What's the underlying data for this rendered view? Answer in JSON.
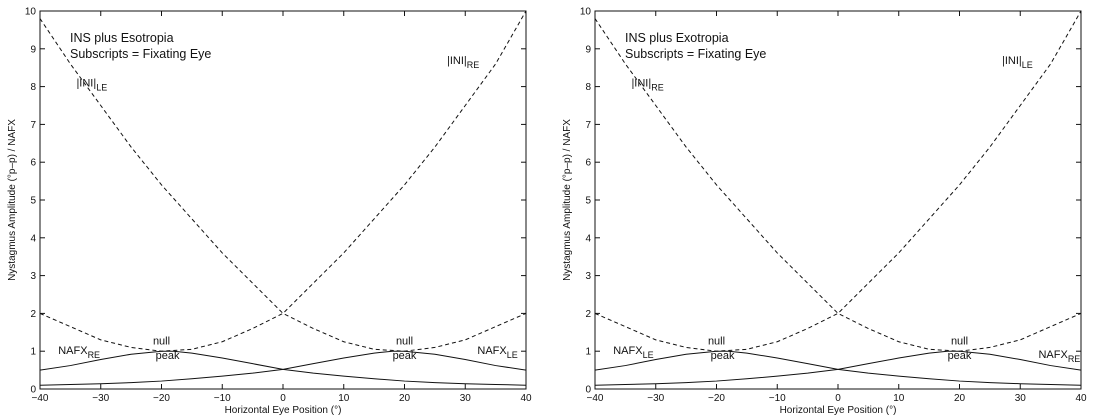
{
  "chart_data": [
    {
      "type": "line",
      "title": "INS plus Esotropia",
      "subtitle": "Subscripts = Fixating Eye",
      "xlabel": "Horizontal Eye Position (°)",
      "ylabel": "Nystagmus Amplitude (°p–p) / NAFX",
      "xlim": [
        -40,
        40
      ],
      "ylim": [
        0,
        10
      ],
      "xticks": [
        -40,
        -30,
        -20,
        -10,
        0,
        10,
        20,
        30,
        40
      ],
      "yticks": [
        0,
        1,
        2,
        3,
        4,
        5,
        6,
        7,
        8,
        9,
        10
      ],
      "grid": false,
      "series": [
        {
          "label_main": "|INI|",
          "label_sub": "LE",
          "style": "dashed",
          "x": [
            -40,
            -35,
            -30,
            -25,
            -20,
            -15,
            -10,
            -5,
            0,
            5,
            10,
            15,
            20,
            25,
            30,
            35,
            40
          ],
          "y": [
            9.8,
            8.6,
            7.5,
            6.4,
            5.4,
            4.5,
            3.6,
            2.8,
            2.0,
            1.6,
            1.25,
            1.05,
            1.0,
            1.1,
            1.3,
            1.65,
            2.0
          ]
        },
        {
          "label_main": "|INI|",
          "label_sub": "RE",
          "style": "dashed",
          "x": [
            -40,
            -35,
            -30,
            -25,
            -20,
            -15,
            -10,
            -5,
            0,
            5,
            10,
            15,
            20,
            25,
            30,
            35,
            40
          ],
          "y": [
            2.0,
            1.65,
            1.3,
            1.1,
            1.0,
            1.05,
            1.25,
            1.6,
            2.0,
            2.8,
            3.6,
            4.5,
            5.4,
            6.4,
            7.5,
            8.6,
            10.0
          ]
        },
        {
          "label_main": "NAFX",
          "label_sub": "RE",
          "style": "solid",
          "x": [
            -40,
            -35,
            -30,
            -25,
            -20,
            -18,
            -15,
            -10,
            -5,
            0,
            5,
            10,
            15,
            20,
            25,
            30,
            35,
            40
          ],
          "y": [
            0.5,
            0.62,
            0.78,
            0.92,
            1.0,
            1.0,
            0.95,
            0.82,
            0.67,
            0.52,
            0.42,
            0.34,
            0.27,
            0.21,
            0.17,
            0.14,
            0.12,
            0.1
          ]
        },
        {
          "label_main": "NAFX",
          "label_sub": "LE",
          "style": "solid",
          "x": [
            -40,
            -35,
            -30,
            -25,
            -20,
            -15,
            -10,
            -5,
            0,
            5,
            10,
            15,
            18,
            20,
            25,
            30,
            35,
            40
          ],
          "y": [
            0.1,
            0.12,
            0.14,
            0.17,
            0.21,
            0.27,
            0.34,
            0.42,
            0.52,
            0.67,
            0.82,
            0.95,
            1.0,
            1.0,
            0.92,
            0.78,
            0.62,
            0.5
          ]
        }
      ],
      "annotations": [
        {
          "text": "null",
          "x": -20,
          "y": 1.18
        },
        {
          "text": "peak",
          "x": -19,
          "y": 0.8
        },
        {
          "text": "null",
          "x": 20,
          "y": 1.18
        },
        {
          "text": "peak",
          "x": 20,
          "y": 0.8
        }
      ],
      "series_labels": [
        {
          "series": 0,
          "x": -34,
          "y": 8.0
        },
        {
          "series": 1,
          "x": 27,
          "y": 8.6
        },
        {
          "series": 2,
          "x": -37,
          "y": 0.92
        },
        {
          "series": 3,
          "x": 32,
          "y": 0.92
        }
      ]
    },
    {
      "type": "line",
      "title": "INS plus Exotropia",
      "subtitle": "Subscripts = Fixating Eye",
      "xlabel": "Horizontal Eye Position (°)",
      "ylabel": "Nystagmus Amplitude (°p–p) / NAFX",
      "xlim": [
        -40,
        40
      ],
      "ylim": [
        0,
        10
      ],
      "xticks": [
        -40,
        -30,
        -20,
        -10,
        0,
        10,
        20,
        30,
        40
      ],
      "yticks": [
        0,
        1,
        2,
        3,
        4,
        5,
        6,
        7,
        8,
        9,
        10
      ],
      "grid": false,
      "series": [
        {
          "label_main": "|INI|",
          "label_sub": "RE",
          "style": "dashed",
          "x": [
            -40,
            -35,
            -30,
            -25,
            -20,
            -15,
            -10,
            -5,
            0,
            5,
            10,
            15,
            20,
            25,
            30,
            35,
            40
          ],
          "y": [
            9.8,
            8.6,
            7.5,
            6.4,
            5.4,
            4.5,
            3.6,
            2.8,
            2.0,
            1.6,
            1.25,
            1.05,
            1.0,
            1.1,
            1.3,
            1.65,
            2.0
          ]
        },
        {
          "label_main": "|INI|",
          "label_sub": "LE",
          "style": "dashed",
          "x": [
            -40,
            -35,
            -30,
            -25,
            -20,
            -15,
            -10,
            -5,
            0,
            5,
            10,
            15,
            20,
            25,
            30,
            35,
            40
          ],
          "y": [
            2.0,
            1.65,
            1.3,
            1.1,
            1.0,
            1.05,
            1.25,
            1.6,
            2.0,
            2.8,
            3.6,
            4.5,
            5.4,
            6.4,
            7.5,
            8.6,
            10.0
          ]
        },
        {
          "label_main": "NAFX",
          "label_sub": "LE",
          "style": "solid",
          "x": [
            -40,
            -35,
            -30,
            -25,
            -20,
            -18,
            -15,
            -10,
            -5,
            0,
            5,
            10,
            15,
            20,
            25,
            30,
            35,
            40
          ],
          "y": [
            0.5,
            0.62,
            0.78,
            0.92,
            1.0,
            1.0,
            0.95,
            0.82,
            0.67,
            0.52,
            0.42,
            0.34,
            0.27,
            0.21,
            0.17,
            0.14,
            0.12,
            0.1
          ]
        },
        {
          "label_main": "NAFX",
          "label_sub": "RE",
          "style": "solid",
          "x": [
            -40,
            -35,
            -30,
            -25,
            -20,
            -15,
            -10,
            -5,
            0,
            5,
            10,
            15,
            18,
            20,
            25,
            30,
            35,
            40
          ],
          "y": [
            0.1,
            0.12,
            0.14,
            0.17,
            0.21,
            0.27,
            0.34,
            0.42,
            0.52,
            0.67,
            0.82,
            0.95,
            1.0,
            1.0,
            0.92,
            0.78,
            0.62,
            0.5
          ]
        }
      ],
      "annotations": [
        {
          "text": "null",
          "x": -20,
          "y": 1.18
        },
        {
          "text": "peak",
          "x": -19,
          "y": 0.8
        },
        {
          "text": "null",
          "x": 20,
          "y": 1.18
        },
        {
          "text": "peak",
          "x": 20,
          "y": 0.8
        }
      ],
      "series_labels": [
        {
          "series": 0,
          "x": -34,
          "y": 8.0
        },
        {
          "series": 1,
          "x": 27,
          "y": 8.6
        },
        {
          "series": 2,
          "x": -37,
          "y": 0.92
        },
        {
          "series": 3,
          "x": 33,
          "y": 0.82
        }
      ]
    }
  ]
}
